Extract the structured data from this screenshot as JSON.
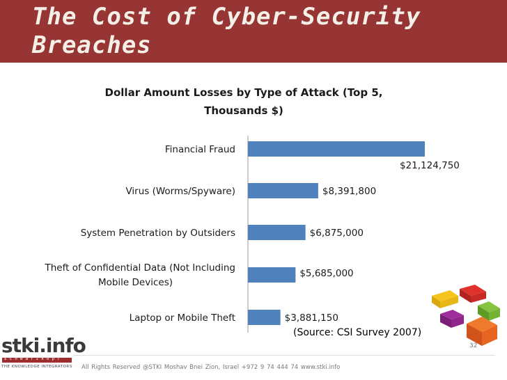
{
  "slide_title": "The Cost of Cyber-Security Breaches",
  "chart_data": {
    "type": "bar",
    "orientation": "horizontal",
    "title": "Dollar Amount Losses by Type of Attack (Top 5, Thousands $)",
    "categories": [
      "Financial Fraud",
      "Virus (Worms/Spyware)",
      "System Penetration by Outsiders",
      "Theft of Confidential Data (Not Including Mobile Devices)",
      "Laptop or Mobile Theft"
    ],
    "values": [
      21124750,
      8391800,
      6875000,
      5685000,
      3881150
    ],
    "data_labels": [
      "$21,124,750",
      "$8,391,800",
      "$6,875,000",
      "$5,685,000",
      "$3,881,150"
    ],
    "bar_color": "#4f81bd",
    "xlim": [
      0,
      21124750
    ],
    "grid": false,
    "legend": "none"
  },
  "source": "(Source: CSI Survey 2007)",
  "logo": {
    "name": "stki.info",
    "strip": "schwarzkopf",
    "tagline": "THE KNOWLEDGE INTEGRATORS"
  },
  "footer": "All Rights Reserved @STKI    Moshav Bnei Zion, Israel  +972 9 74 444 74    www.stki.info",
  "page_number": "32",
  "colors": {
    "header": "#963533",
    "bar": "#4f81bd"
  }
}
